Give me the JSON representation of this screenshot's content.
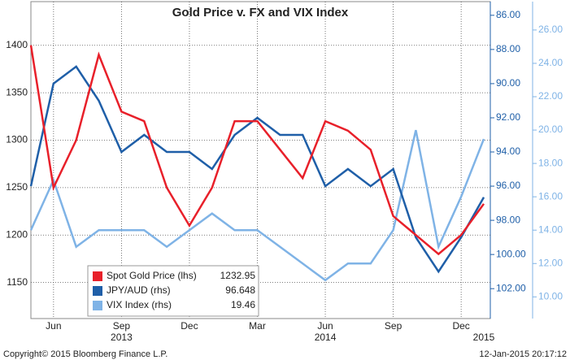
{
  "chart_data": {
    "type": "line",
    "title": "Gold Price v. FX and VIX Index",
    "x": [
      "2013-05",
      "2013-06",
      "2013-07",
      "2013-08",
      "2013-09",
      "2013-10",
      "2013-11",
      "2013-12",
      "2014-01",
      "2014-02",
      "2014-03",
      "2014-04",
      "2014-05",
      "2014-06",
      "2014-07",
      "2014-08",
      "2014-09",
      "2014-10",
      "2014-11",
      "2014-12",
      "2015-01"
    ],
    "xlim": [
      "2013-05",
      "2015-01"
    ],
    "xticks": [
      {
        "value": "2013-06",
        "label": "Jun"
      },
      {
        "value": "2013-09",
        "label": "Sep"
      },
      {
        "value": "2013-12",
        "label": "Dec"
      },
      {
        "value": "2014-03",
        "label": "Mar"
      },
      {
        "value": "2014-06",
        "label": "Jun"
      },
      {
        "value": "2014-09",
        "label": "Sep"
      },
      {
        "value": "2014-12",
        "label": "Dec"
      }
    ],
    "year_ticks": [
      {
        "value": "2013-09",
        "label": "2013"
      },
      {
        "value": "2014-06",
        "label": "2014"
      },
      {
        "value": "2015-01",
        "label": "2015"
      }
    ],
    "ylim": [
      1112,
      1446
    ],
    "yticks": [
      1150,
      1200,
      1250,
      1300,
      1350,
      1400
    ],
    "y2lim": [
      85.2,
      103.75
    ],
    "y2_inverted": true,
    "y2ticks": [
      {
        "value": 86,
        "label": "86.00"
      },
      {
        "value": 88,
        "label": "88.00"
      },
      {
        "value": 90,
        "label": "90.00"
      },
      {
        "value": 92,
        "label": "92.00"
      },
      {
        "value": 94,
        "label": "94.00"
      },
      {
        "value": 96,
        "label": "96.00"
      },
      {
        "value": 98,
        "label": "98.00"
      },
      {
        "value": 100,
        "label": "100.00"
      },
      {
        "value": 102,
        "label": "102.00"
      }
    ],
    "y3lim": [
      8.7,
      27.7
    ],
    "y3ticks": [
      {
        "value": 10,
        "label": "10.00"
      },
      {
        "value": 12,
        "label": "12.00"
      },
      {
        "value": 14,
        "label": "14.00"
      },
      {
        "value": 16,
        "label": "16.00"
      },
      {
        "value": 18,
        "label": "18.00"
      },
      {
        "value": 20,
        "label": "20.00"
      },
      {
        "value": 22,
        "label": "22.00"
      },
      {
        "value": 24,
        "label": "24.00"
      },
      {
        "value": 26,
        "label": "26.00"
      }
    ],
    "grid": true,
    "series": [
      {
        "name": "Spot Gold Price (lhs)",
        "color": "#e8202a",
        "axis": "y",
        "last_value_label": "1232.95",
        "values": [
          1400,
          1250,
          1300,
          1390,
          1330,
          1320,
          1250,
          1210,
          1250,
          1320,
          1320,
          1290,
          1260,
          1320,
          1310,
          1290,
          1220,
          1200,
          1180,
          1200,
          1232.95
        ]
      },
      {
        "name": "JPY/AUD (rhs)",
        "color": "#1f5fa8",
        "axis": "y2",
        "last_value_label": "96.648",
        "values": [
          96,
          90,
          89,
          91,
          94,
          93,
          94,
          94,
          95,
          93,
          92,
          93,
          93,
          96,
          95,
          96,
          95,
          99,
          101,
          99,
          96.648
        ]
      },
      {
        "name": "VIX Index (rhs)",
        "color": "#7fb3e6",
        "axis": "y3",
        "last_value_label": "19.46",
        "values": [
          14,
          17,
          13,
          14,
          14,
          14,
          13,
          14,
          15,
          14,
          14,
          13,
          12,
          11,
          12,
          12,
          14,
          20,
          13,
          16,
          19.46
        ]
      }
    ],
    "footer_left": "Copyright© 2015 Bloomberg Finance L.P.",
    "footer_right": "12-Jan-2015 20:17:12"
  }
}
